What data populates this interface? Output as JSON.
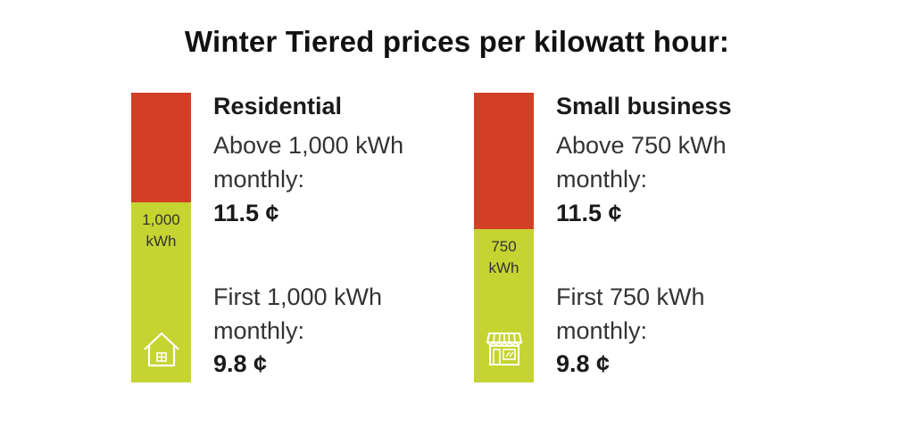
{
  "title": "Winter Tiered prices per kilowatt hour:",
  "colors": {
    "upper_tier": "#d23f25",
    "lower_tier": "#c5d431",
    "icon_stroke": "#ffffff"
  },
  "panels": [
    {
      "heading": "Residential",
      "upper_label": "Above 1,000 kWh monthly:",
      "upper_price": "11.5 ¢",
      "lower_label": "First 1,000 kWh monthly:",
      "lower_price": "9.8 ¢",
      "threshold_value": "1,000",
      "threshold_unit": "kWh",
      "icon": "house-icon"
    },
    {
      "heading": "Small business",
      "upper_label": "Above 750 kWh monthly:",
      "upper_price": "11.5 ¢",
      "lower_label": "First 750 kWh monthly:",
      "lower_price": "9.8 ¢",
      "threshold_value": "750",
      "threshold_unit": "kWh",
      "icon": "storefront-icon"
    }
  ],
  "chart_data": {
    "type": "bar",
    "title": "Winter Tiered prices per kilowatt hour:",
    "categories": [
      "Residential",
      "Small business"
    ],
    "tier_thresholds_kwh": [
      1000,
      750
    ],
    "series": [
      {
        "name": "First kWh monthly",
        "values": [
          9.8,
          9.8
        ]
      },
      {
        "name": "Above kWh monthly",
        "values": [
          11.5,
          11.5
        ]
      }
    ],
    "unit": "¢"
  }
}
